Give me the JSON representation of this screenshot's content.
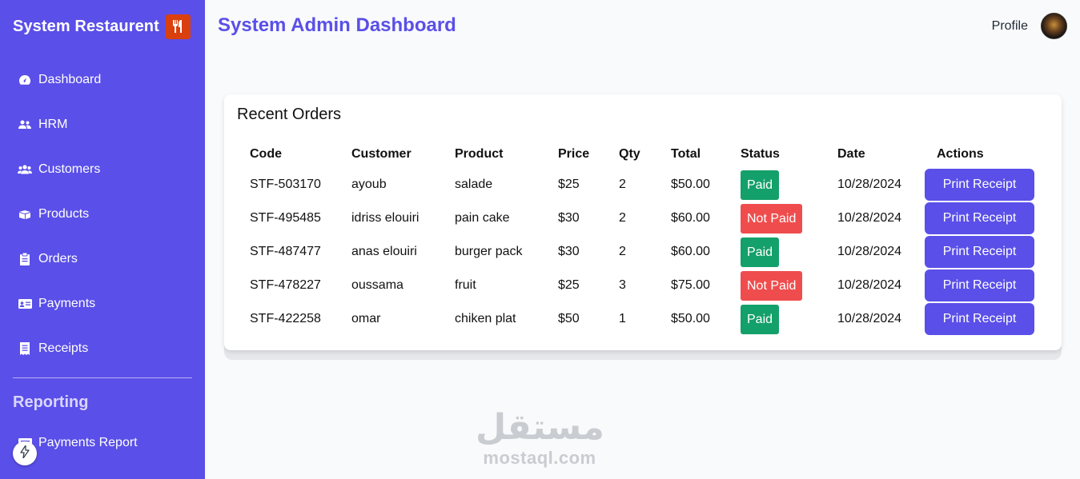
{
  "sidebar": {
    "brand": "System Restaurent",
    "brand_icon": "fork-knife-icon",
    "nav": [
      {
        "label": "Dashboard",
        "icon": "gauge-icon"
      },
      {
        "label": "HRM",
        "icon": "users-icon"
      },
      {
        "label": "Customers",
        "icon": "user-group-icon"
      },
      {
        "label": "Products",
        "icon": "box-icon"
      },
      {
        "label": "Orders",
        "icon": "clipboard-icon"
      },
      {
        "label": "Payments",
        "icon": "id-card-icon"
      },
      {
        "label": "Receipts",
        "icon": "receipt-icon"
      }
    ],
    "section_title": "Reporting",
    "report_item": {
      "label": "Payments Report",
      "icon": "report-icon"
    }
  },
  "header": {
    "title": "System Admin Dashboard",
    "profile_label": "Profile"
  },
  "orders": {
    "title": "Recent Orders",
    "columns": [
      "Code",
      "Customer",
      "Product",
      "Price",
      "Qty",
      "Total",
      "Status",
      "Date",
      "Actions"
    ],
    "rows": [
      {
        "code": "STF-503170",
        "customer": "ayoub",
        "product": "salade",
        "price": "$25",
        "qty": "2",
        "total": "$50.00",
        "status": "Paid",
        "date": "10/28/2024",
        "action": "Print Receipt"
      },
      {
        "code": "STF-495485",
        "customer": "idriss elouiri",
        "product": "pain cake",
        "price": "$30",
        "qty": "2",
        "total": "$60.00",
        "status": "Not Paid",
        "date": "10/28/2024",
        "action": "Print Receipt"
      },
      {
        "code": "STF-487477",
        "customer": "anas elouiri",
        "product": "burger pack",
        "price": "$30",
        "qty": "2",
        "total": "$60.00",
        "status": "Paid",
        "date": "10/28/2024",
        "action": "Print Receipt"
      },
      {
        "code": "STF-478227",
        "customer": "oussama",
        "product": "fruit",
        "price": "$25",
        "qty": "3",
        "total": "$75.00",
        "status": "Not Paid",
        "date": "10/28/2024",
        "action": "Print Receipt"
      },
      {
        "code": "STF-422258",
        "customer": "omar",
        "product": "chiken plat",
        "price": "$50",
        "qty": "1",
        "total": "$50.00",
        "status": "Paid",
        "date": "10/28/2024",
        "action": "Print Receipt"
      }
    ]
  },
  "watermark": {
    "arabic": "مستقل",
    "latin": "mostaql.com"
  },
  "colors": {
    "primary": "#5a4fe8",
    "paid": "#14a06a",
    "not_paid": "#ef4d4d",
    "brand_logo": "#d9400e"
  }
}
